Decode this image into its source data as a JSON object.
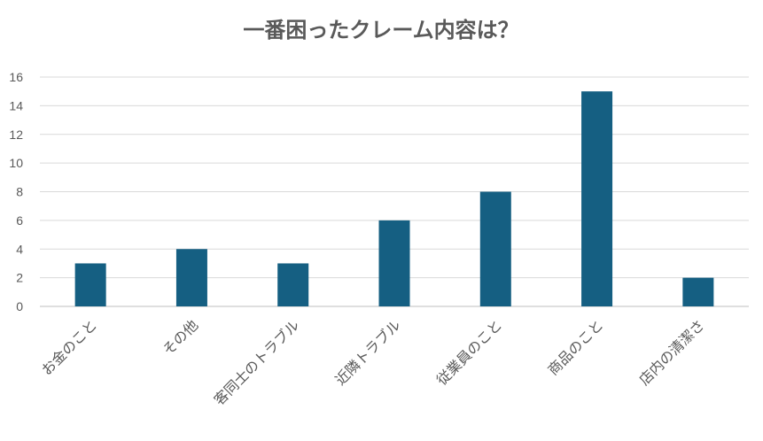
{
  "chart_data": {
    "type": "bar",
    "title": "一番困ったクレーム内容は？",
    "xlabel": "",
    "ylabel": "",
    "categories": [
      "お金のこと",
      "その他",
      "客同士のトラブル",
      "近隣トラブル",
      "従業員のこと",
      "商品のこと",
      "店内の清潔さ"
    ],
    "values": [
      3,
      4,
      3,
      6,
      8,
      15,
      2
    ],
    "ylim": [
      0,
      16
    ],
    "yticks": [
      0,
      2,
      4,
      6,
      8,
      10,
      12,
      14,
      16
    ],
    "grid": true,
    "legend": "none",
    "bar_color": "#155f82"
  }
}
